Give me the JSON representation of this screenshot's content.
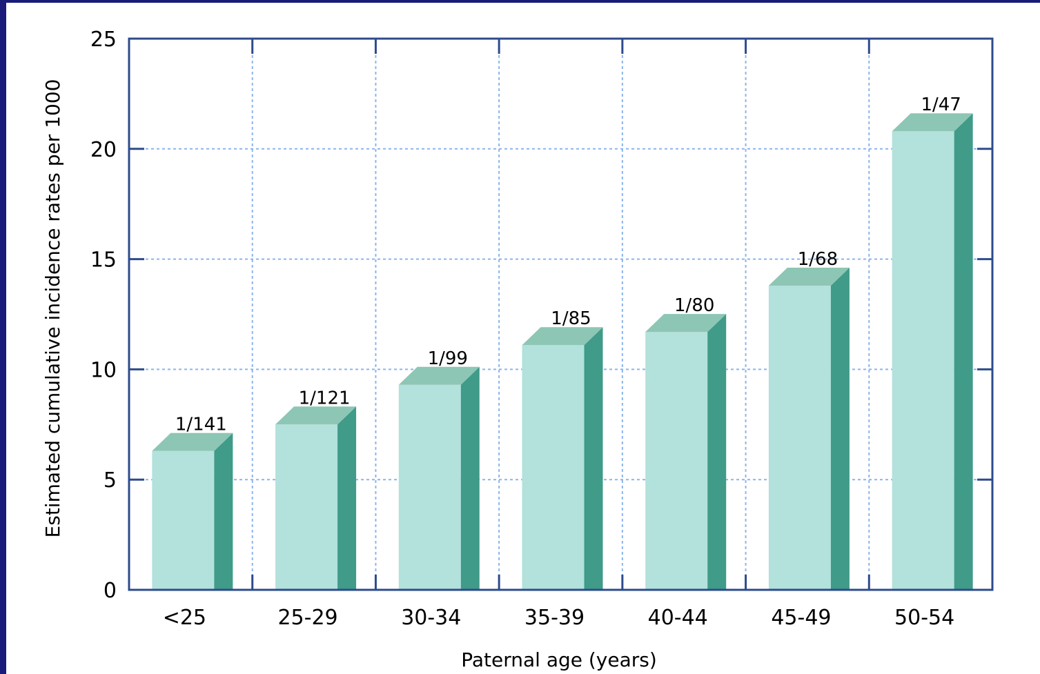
{
  "chart_data": {
    "type": "bar",
    "title": "",
    "xlabel": "Paternal age (years)",
    "ylabel": "Estimated cumulative incidence rates per 1000",
    "categories": [
      "<25",
      "25-29",
      "30-34",
      "35-39",
      "40-44",
      "45-49",
      "50-54"
    ],
    "values": [
      6.3,
      7.5,
      9.3,
      11.1,
      11.7,
      13.8,
      20.8
    ],
    "data_labels": [
      "1/141",
      "1/121",
      "1/99",
      "1/85",
      "1/80",
      "1/68",
      "1/47"
    ],
    "yticks": [
      "0",
      "5",
      "10",
      "15",
      "20",
      "25"
    ],
    "ylim": [
      0,
      25
    ],
    "grid": true,
    "legend": "none",
    "colors": {
      "bar_front": "#b3e1db",
      "bar_top": "#8dc6b4",
      "bar_side": "#409b89",
      "axis": "#2d4b8c",
      "grid": "#8ab4ec",
      "border": "#1a1a7a"
    }
  }
}
